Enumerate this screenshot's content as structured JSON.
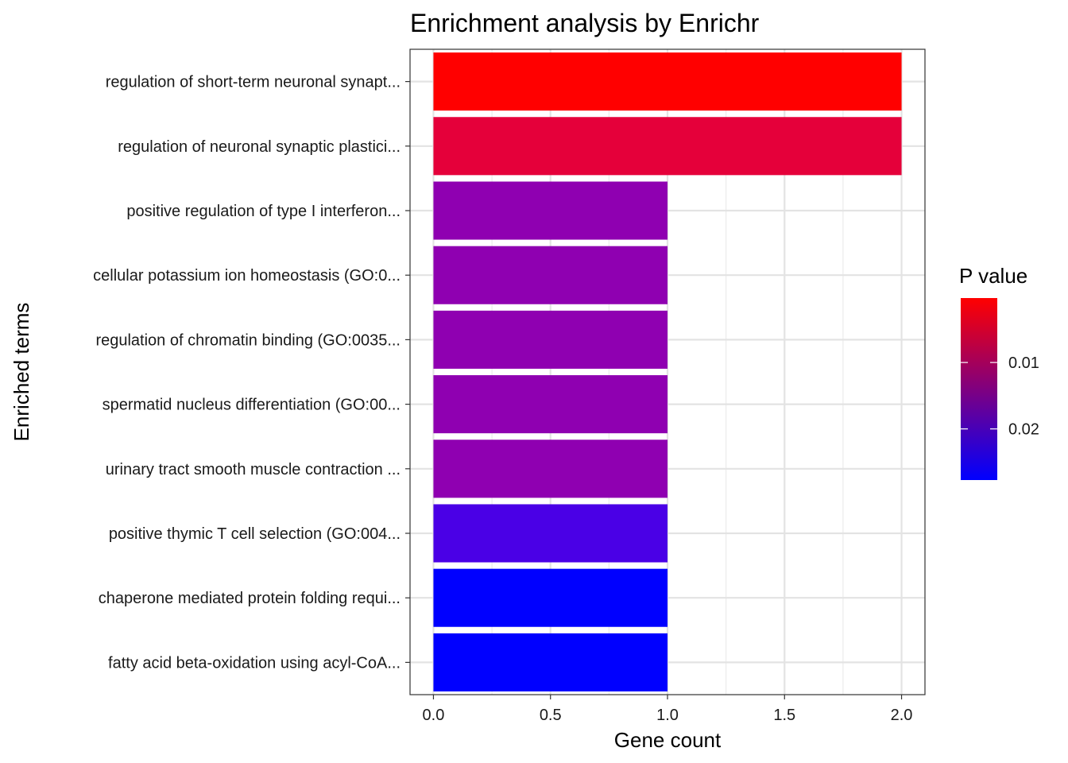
{
  "chart_data": {
    "type": "bar",
    "orientation": "horizontal",
    "title": "Enrichment analysis by Enrichr",
    "xlabel": "Gene count",
    "ylabel": "Enriched terms",
    "xlim": [
      -0.1,
      2.1
    ],
    "x_ticks": [
      "0.0",
      "0.5",
      "1.0",
      "1.5",
      "2.0"
    ],
    "x_tick_values": [
      0,
      0.5,
      1.0,
      1.5,
      2.0
    ],
    "grid": true,
    "categories": [
      "regulation of short-term neuronal synapt...",
      "regulation of neuronal synaptic plastici...",
      "positive regulation of type I interferon...",
      "cellular potassium ion homeostasis (GO:0...",
      "regulation of chromatin binding (GO:0035...",
      "spermatid nucleus differentiation (GO:00...",
      "urinary tract smooth muscle contraction ...",
      "positive thymic T cell selection (GO:004...",
      "chaperone mediated protein folding requi...",
      "fatty acid beta-oxidation using acyl-CoA..."
    ],
    "values": [
      2,
      2,
      1,
      1,
      1,
      1,
      1,
      1,
      1,
      1
    ],
    "bar_colors": [
      "#ff0000",
      "#e5003a",
      "#8f00b1",
      "#8f00b1",
      "#8f00b1",
      "#8f00b1",
      "#8f00b1",
      "#4a00e6",
      "#0000ff",
      "#0000ff"
    ],
    "legend": {
      "title": "P value",
      "placement": "right",
      "type": "colorbar",
      "low_color": "#ff0000",
      "high_color": "#0000ff",
      "range": [
        0.0003,
        0.0277
      ],
      "ticks": [
        {
          "label": "0.01",
          "value": 0.01
        },
        {
          "label": "0.02",
          "value": 0.02
        }
      ]
    }
  }
}
